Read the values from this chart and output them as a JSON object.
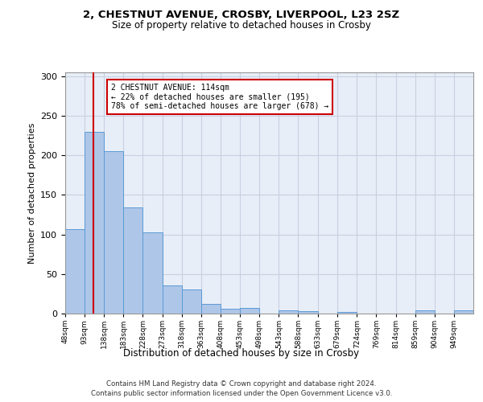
{
  "title1": "2, CHESTNUT AVENUE, CROSBY, LIVERPOOL, L23 2SZ",
  "title2": "Size of property relative to detached houses in Crosby",
  "xlabel": "Distribution of detached houses by size in Crosby",
  "ylabel": "Number of detached properties",
  "bar_edges": [
    48,
    93,
    138,
    183,
    228,
    273,
    318,
    363,
    408,
    453,
    498,
    543,
    588,
    633,
    679,
    724,
    769,
    814,
    859,
    904,
    949
  ],
  "bar_values": [
    107,
    230,
    205,
    134,
    103,
    36,
    30,
    12,
    6,
    7,
    0,
    4,
    3,
    0,
    2,
    0,
    0,
    0,
    4,
    0,
    4
  ],
  "bar_color": "#aec6e8",
  "bar_edge_color": "#5b9bd5",
  "property_size": 114,
  "property_line_color": "#cc0000",
  "annotation_line1": "2 CHESTNUT AVENUE: 114sqm",
  "annotation_line2": "← 22% of detached houses are smaller (195)",
  "annotation_line3": "78% of semi-detached houses are larger (678) →",
  "annotation_box_color": "#ffffff",
  "annotation_box_edge": "#cc0000",
  "ylim": [
    0,
    305
  ],
  "yticks": [
    0,
    50,
    100,
    150,
    200,
    250,
    300
  ],
  "grid_color": "#c8d0e0",
  "background_color": "#e8eef8",
  "footer_line1": "Contains HM Land Registry data © Crown copyright and database right 2024.",
  "footer_line2": "Contains public sector information licensed under the Open Government Licence v3.0.",
  "tick_labels": [
    "48sqm",
    "93sqm",
    "138sqm",
    "183sqm",
    "228sqm",
    "273sqm",
    "318sqm",
    "363sqm",
    "408sqm",
    "453sqm",
    "498sqm",
    "543sqm",
    "588sqm",
    "633sqm",
    "679sqm",
    "724sqm",
    "769sqm",
    "814sqm",
    "859sqm",
    "904sqm",
    "949sqm"
  ]
}
